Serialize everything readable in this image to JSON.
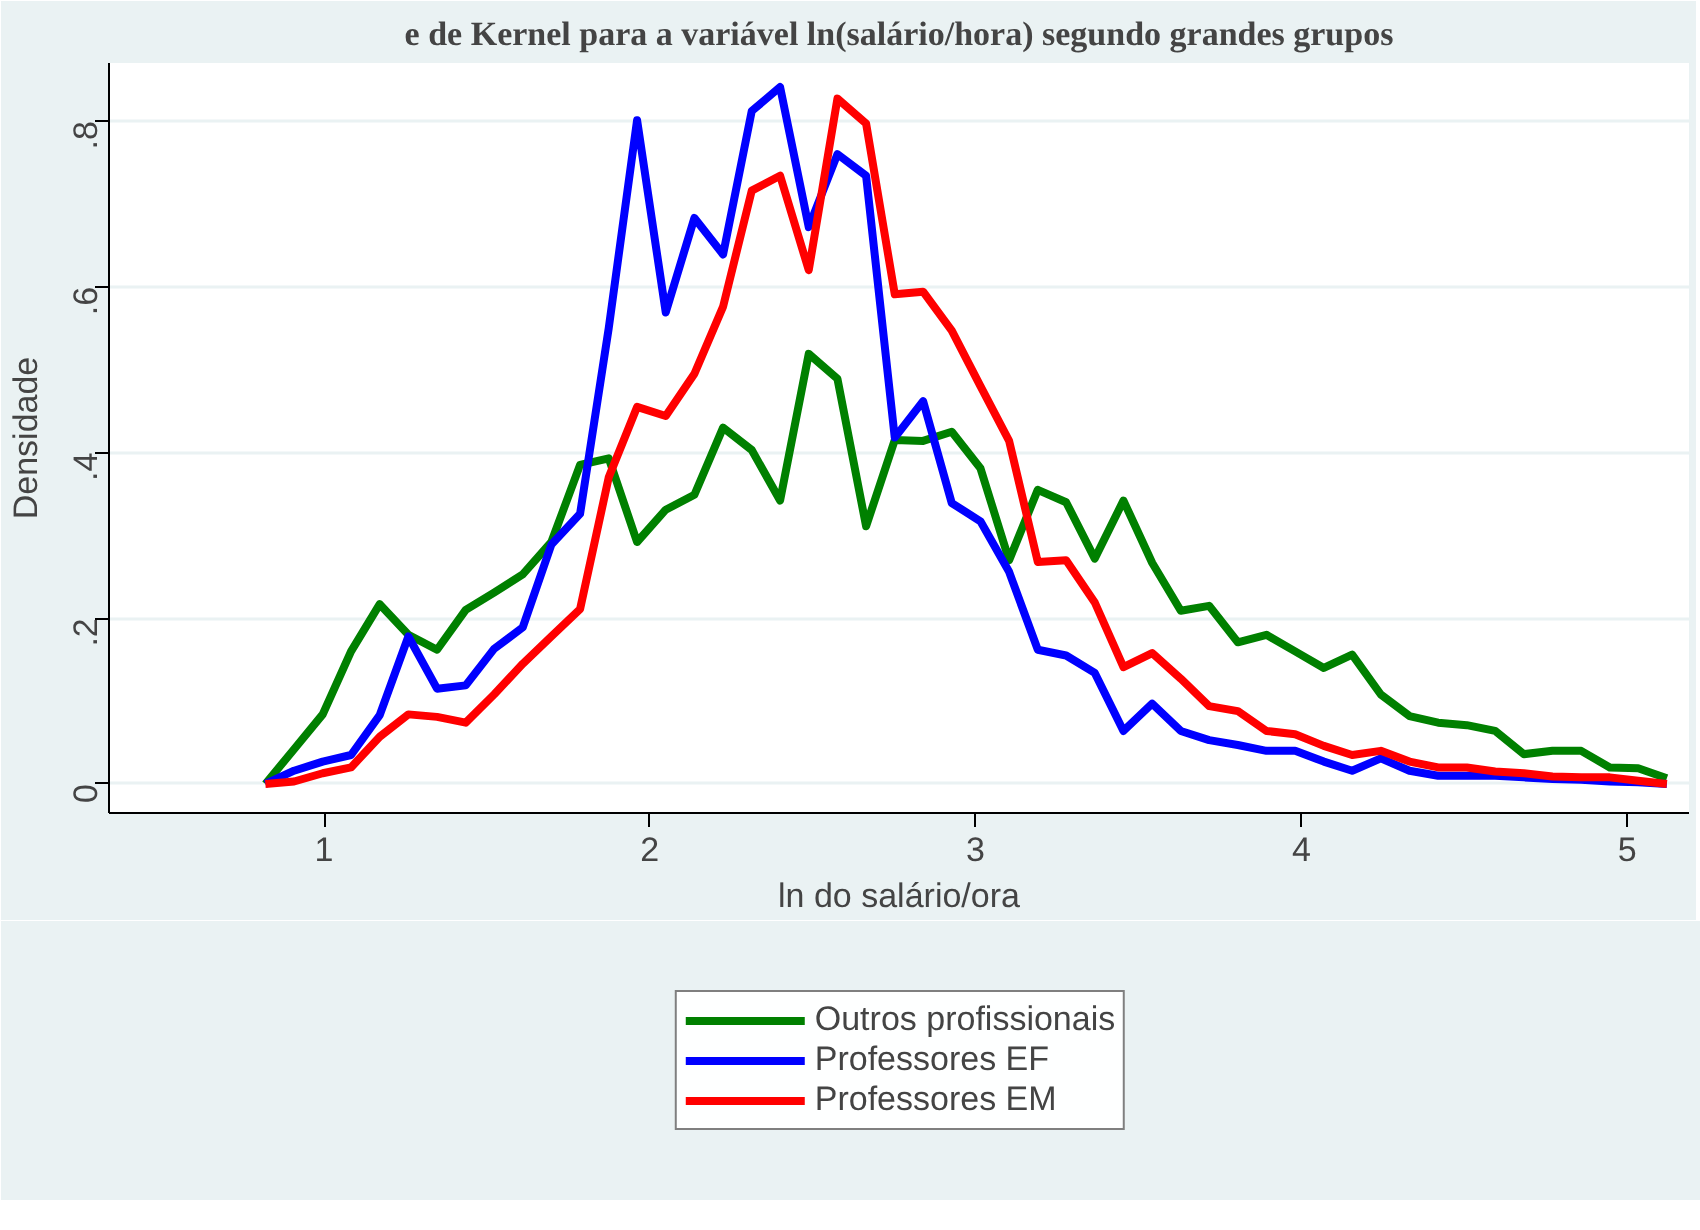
{
  "chart_data": {
    "type": "line",
    "title": "e de Kernel para a variável ln(salário/hora) segundo grandes grupos",
    "xlabel": "ln do salário/ora",
    "ylabel": "Densidade",
    "x": [
      0.82,
      0.908,
      0.996,
      1.083,
      1.171,
      1.259,
      1.347,
      1.435,
      1.522,
      1.61,
      1.698,
      1.786,
      1.874,
      1.961,
      2.049,
      2.137,
      2.225,
      2.313,
      2.4,
      2.488,
      2.576,
      2.664,
      2.752,
      2.839,
      2.927,
      3.015,
      3.103,
      3.191,
      3.278,
      3.366,
      3.454,
      3.542,
      3.63,
      3.717,
      3.805,
      3.893,
      3.981,
      4.069,
      4.156,
      4.244,
      4.332,
      4.42,
      4.508,
      4.595,
      4.683,
      4.771,
      4.859,
      4.947,
      5.034,
      5.122
    ],
    "series": [
      {
        "name": "Outros profissionais",
        "color": "#008000",
        "values": [
          0,
          0.042,
          0.084,
          0.16,
          0.217,
          0.18,
          0.162,
          0.21,
          0.231,
          0.253,
          0.292,
          0.385,
          0.393,
          0.292,
          0.331,
          0.349,
          0.43,
          0.403,
          0.342,
          0.519,
          0.489,
          0.311,
          0.415,
          0.414,
          0.425,
          0.381,
          0.27,
          0.355,
          0.34,
          0.272,
          0.342,
          0.267,
          0.209,
          0.215,
          0.171,
          0.18,
          0.16,
          0.14,
          0.156,
          0.108,
          0.082,
          0.074,
          0.071,
          0.064,
          0.036,
          0.04,
          0.04,
          0.02,
          0.019,
          0.007
        ]
      },
      {
        "name": "Professores EF",
        "color": "#0000ff",
        "values": [
          0,
          0.016,
          0.027,
          0.035,
          0.083,
          0.178,
          0.115,
          0.119,
          0.163,
          0.189,
          0.289,
          0.326,
          0.55,
          0.801,
          0.569,
          0.683,
          0.639,
          0.812,
          0.841,
          0.672,
          0.76,
          0.734,
          0.418,
          0.462,
          0.339,
          0.317,
          0.256,
          0.162,
          0.155,
          0.134,
          0.064,
          0.097,
          0.064,
          0.053,
          0.047,
          0.04,
          0.04,
          0.027,
          0.016,
          0.031,
          0.016,
          0.01,
          0.01,
          0.01,
          0.008,
          0.006,
          0.005,
          0.003,
          0.002,
          0
        ]
      },
      {
        "name": "Professores EM",
        "color": "#ff0000",
        "values": [
          0,
          0.003,
          0.013,
          0.02,
          0.057,
          0.084,
          0.081,
          0.074,
          0.108,
          0.145,
          0.178,
          0.211,
          0.37,
          0.455,
          0.444,
          0.495,
          0.576,
          0.716,
          0.734,
          0.62,
          0.827,
          0.797,
          0.591,
          0.594,
          0.547,
          0.48,
          0.414,
          0.268,
          0.27,
          0.219,
          0.141,
          0.158,
          0.127,
          0.094,
          0.088,
          0.064,
          0.06,
          0.046,
          0.035,
          0.04,
          0.027,
          0.02,
          0.02,
          0.015,
          0.013,
          0.009,
          0.008,
          0.008,
          0.004,
          0
        ]
      }
    ],
    "xlim": [
      0.34,
      5.19
    ],
    "ylim": [
      -0.035,
      0.87
    ],
    "xticks": [
      1,
      2,
      3,
      4,
      5
    ],
    "yticks": [
      {
        "value": 0,
        "label": "0"
      },
      {
        "value": 0.2,
        "label": ".2"
      },
      {
        "value": 0.4,
        "label": ".4"
      },
      {
        "value": 0.6,
        "label": ".6"
      },
      {
        "value": 0.8,
        "label": ".8"
      }
    ],
    "grid": "y",
    "legend": "bottom",
    "marker": "none",
    "line_style": "solid"
  }
}
